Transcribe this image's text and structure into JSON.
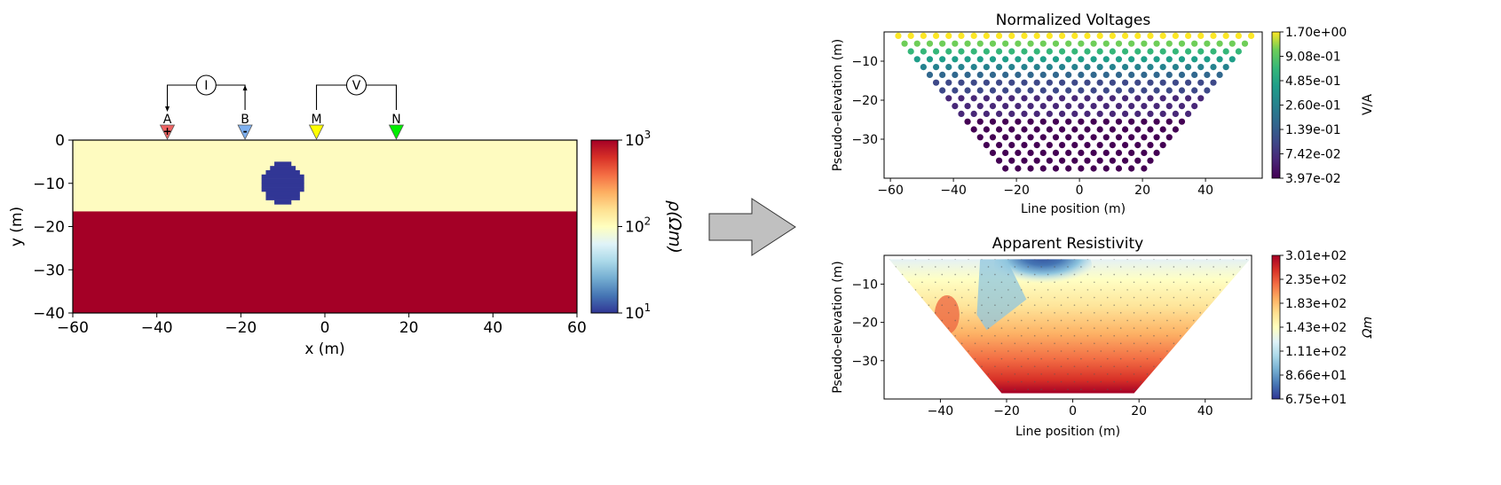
{
  "chart_data": [
    {
      "type": "heatmap",
      "title": "",
      "xlabel": "x (m)",
      "ylabel": "y (m)",
      "xlim": [
        -60,
        60
      ],
      "ylim": [
        -40,
        0
      ],
      "xticks": [
        "−60",
        "−40",
        "−20",
        "0",
        "20",
        "40",
        "60"
      ],
      "yticks": [
        "0",
        "−10",
        "−20",
        "−30",
        "−40"
      ],
      "layers": [
        {
          "top": 0,
          "bottom": -16.5,
          "color": "#fefbc0"
        },
        {
          "top": -16.5,
          "bottom": -40,
          "color": "#a40026"
        }
      ],
      "sphere": {
        "center_x": -10,
        "center_y": -10,
        "radius": 5,
        "color": "#313695"
      },
      "colorbar": {
        "label": "ρ(Ωm)",
        "scale": "log",
        "range": [
          10,
          1000
        ],
        "ticks": [
          {
            "base": "10",
            "exp": "1",
            "value": 10
          },
          {
            "base": "10",
            "exp": "2",
            "value": 100
          },
          {
            "base": "10",
            "exp": "3",
            "value": 1000
          }
        ]
      },
      "electrodes": [
        {
          "label": "A",
          "x": -37.5,
          "color": "#ef6464",
          "sign": "+"
        },
        {
          "label": "B",
          "x": -19,
          "color": "#7eb0f0",
          "sign": "-"
        },
        {
          "label": "M",
          "x": -2,
          "color": "#ffff00",
          "sign": ""
        },
        {
          "label": "N",
          "x": 17,
          "color": "#00ee00",
          "sign": ""
        }
      ],
      "meters": {
        "current": "I",
        "voltage": "V"
      }
    },
    {
      "type": "scatter",
      "title": "Normalized Voltages",
      "xlabel": "Line position (m)",
      "ylabel": "Pseudo-elevation (m)",
      "xlim": [
        -62,
        58
      ],
      "ylim": [
        -40,
        -2.5
      ],
      "xticks": [
        -60,
        -40,
        -20,
        0,
        20,
        40
      ],
      "yticks": [
        -10,
        -20,
        -30
      ],
      "pseudosection": {
        "spacing": 4,
        "rows": 18,
        "top_y": -3.5,
        "first_row": [
          -57.5,
          54.5
        ]
      },
      "colorbar": {
        "label": "V/A",
        "ticks": [
          "1.70e+00",
          "9.08e-01",
          "4.85e-01",
          "2.60e-01",
          "1.39e-01",
          "7.42e-02",
          "3.97e-02"
        ]
      }
    },
    {
      "type": "heatmap",
      "title": "Apparent Resistivity",
      "xlabel": "Line position (m)",
      "ylabel": "Pseudo-elevation (m)",
      "xlim": [
        -57,
        54
      ],
      "ylim": [
        -40,
        -2.5
      ],
      "xticks": [
        -40,
        -20,
        0,
        20,
        40
      ],
      "yticks": [
        -10,
        -20,
        -30
      ],
      "colorbar": {
        "label": "Ωm",
        "ticks": [
          "3.01e+02",
          "2.35e+02",
          "1.83e+02",
          "1.43e+02",
          "1.11e+02",
          "8.66e+01",
          "6.75e+01"
        ]
      }
    }
  ]
}
